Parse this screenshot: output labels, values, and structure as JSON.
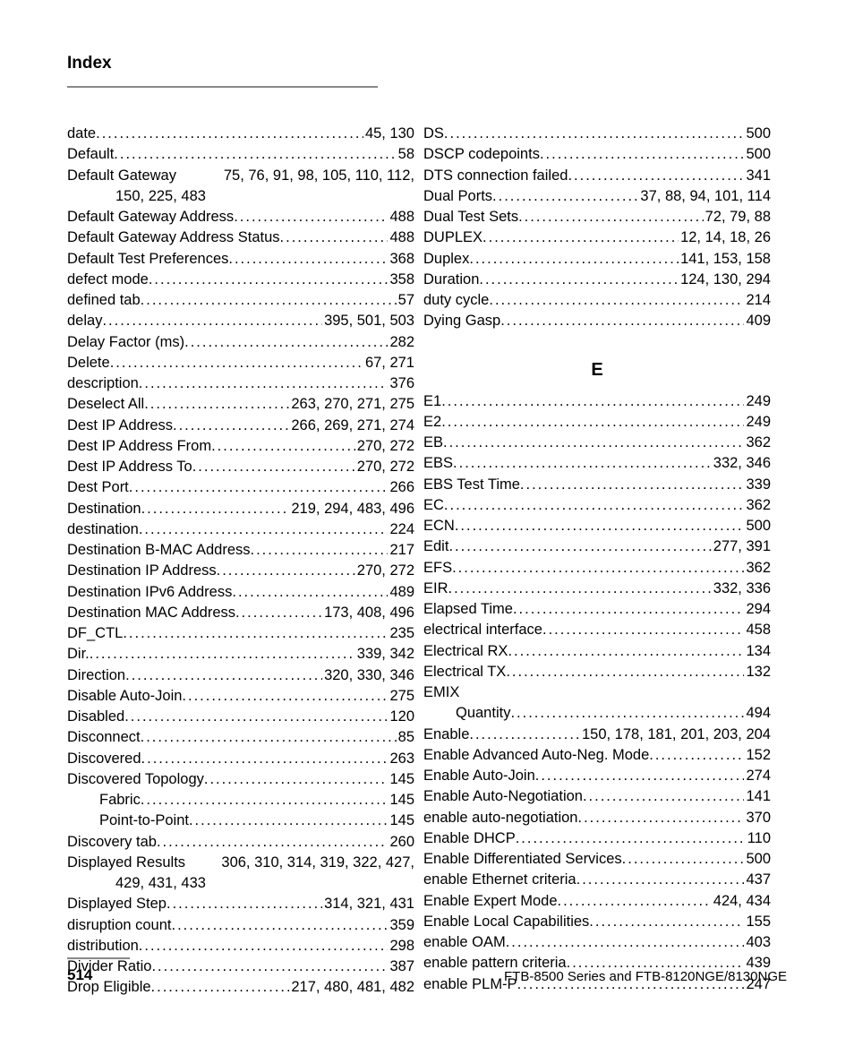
{
  "header": {
    "title": "Index"
  },
  "left_column": [
    {
      "term": "date",
      "pages": "45, 130"
    },
    {
      "term": "Default",
      "pages": "58"
    },
    {
      "term": "Default Gateway",
      "pages": "75, 76, 91, 98, 105, 110, 112,",
      "noleader": true
    },
    {
      "wrap": "150, 225, 483"
    },
    {
      "term": "Default Gateway Address",
      "pages": "488"
    },
    {
      "term": "Default Gateway Address Status",
      "pages": "488"
    },
    {
      "term": "Default Test Preferences",
      "pages": "368"
    },
    {
      "term": "defect mode",
      "pages": "358"
    },
    {
      "term": "defined tab",
      "pages": "57"
    },
    {
      "term": "delay",
      "pages": "395, 501, 503"
    },
    {
      "term": "Delay Factor (ms)",
      "pages": "282"
    },
    {
      "term": "Delete",
      "pages": "67, 271"
    },
    {
      "term": "description",
      "pages": "376"
    },
    {
      "term": "Deselect All",
      "pages": "263, 270, 271, 275"
    },
    {
      "term": "Dest IP Address",
      "pages": "266, 269, 271, 274"
    },
    {
      "term": "Dest IP Address From",
      "pages": "270, 272"
    },
    {
      "term": "Dest IP Address To",
      "pages": "270, 272"
    },
    {
      "term": "Dest Port",
      "pages": "266"
    },
    {
      "term": "Destination",
      "pages": "219, 294, 483, 496"
    },
    {
      "term": "destination",
      "pages": "224"
    },
    {
      "term": "Destination B-MAC Address",
      "pages": "217"
    },
    {
      "term": "Destination IP Address",
      "pages": "270, 272"
    },
    {
      "term": "Destination IPv6 Address",
      "pages": "489"
    },
    {
      "term": "Destination MAC Address",
      "pages": "173, 408, 496"
    },
    {
      "term": "DF_CTL",
      "pages": "235"
    },
    {
      "term": "Dir.",
      "pages": "339, 342"
    },
    {
      "term": "Direction",
      "pages": "320, 330, 346"
    },
    {
      "term": "Disable Auto-Join",
      "pages": "275"
    },
    {
      "term": "Disabled",
      "pages": "120"
    },
    {
      "term": "Disconnect",
      "pages": "85"
    },
    {
      "term": "Discovered",
      "pages": "263"
    },
    {
      "term": "Discovered Topology",
      "pages": "145"
    },
    {
      "term": "Fabric",
      "pages": "145",
      "indent": 1
    },
    {
      "term": "Point-to-Point",
      "pages": "145",
      "indent": 1
    },
    {
      "term": "Discovery tab",
      "pages": "260"
    },
    {
      "term": "Displayed Results",
      "pages": "306, 310, 314, 319, 322, 427,",
      "noleader": true
    },
    {
      "wrap": "429, 431, 433"
    },
    {
      "term": "Displayed Step",
      "pages": "314, 321, 431"
    },
    {
      "term": "disruption count",
      "pages": "359"
    },
    {
      "term": "distribution",
      "pages": "298"
    },
    {
      "term": "Divider Ratio",
      "pages": "387"
    },
    {
      "term": "Drop Eligible",
      "pages": "217, 480, 481, 482"
    }
  ],
  "right_column_top": [
    {
      "term": "DS",
      "pages": "500"
    },
    {
      "term": "DSCP codepoints",
      "pages": "500"
    },
    {
      "term": "DTS connection failed",
      "pages": "341"
    },
    {
      "term": "Dual Ports",
      "pages": "37, 88, 94, 101, 114"
    },
    {
      "term": "Dual Test Sets",
      "pages": "72, 79, 88"
    },
    {
      "term": "DUPLEX",
      "pages": "12, 14, 18, 26"
    },
    {
      "term": "Duplex",
      "pages": "141, 153, 158"
    },
    {
      "term": "Duration",
      "pages": "124, 130, 294"
    },
    {
      "term": "duty cycle",
      "pages": "214"
    },
    {
      "term": "Dying Gasp",
      "pages": "409"
    }
  ],
  "letter_e": "E",
  "right_column_e": [
    {
      "term": "E1",
      "pages": "249"
    },
    {
      "term": "E2",
      "pages": "249"
    },
    {
      "term": "EB",
      "pages": "362"
    },
    {
      "term": "EBS",
      "pages": "332, 346"
    },
    {
      "term": "EBS Test Time",
      "pages": "339"
    },
    {
      "term": "EC",
      "pages": "362"
    },
    {
      "term": "ECN",
      "pages": "500"
    },
    {
      "term": "Edit",
      "pages": "277, 391"
    },
    {
      "term": "EFS",
      "pages": "362"
    },
    {
      "term": "EIR",
      "pages": "332, 336"
    },
    {
      "term": "Elapsed Time",
      "pages": "294"
    },
    {
      "term": "electrical interface",
      "pages": "458"
    },
    {
      "term": "Electrical RX",
      "pages": "134"
    },
    {
      "term": "Electrical TX",
      "pages": "132"
    },
    {
      "term": "EMIX",
      "bare": true
    },
    {
      "term": "Quantity",
      "pages": "494",
      "indent": 1
    },
    {
      "term": "Enable",
      "pages": "150, 178, 181, 201, 203, 204"
    },
    {
      "term": "Enable Advanced Auto-Neg. Mode",
      "pages": "152"
    },
    {
      "term": "Enable Auto-Join",
      "pages": "274"
    },
    {
      "term": "Enable Auto-Negotiation",
      "pages": "141"
    },
    {
      "term": "enable auto-negotiation",
      "pages": "370"
    },
    {
      "term": "Enable DHCP",
      "pages": "110"
    },
    {
      "term": "Enable Differentiated Services",
      "pages": "500"
    },
    {
      "term": "enable Ethernet criteria",
      "pages": "437"
    },
    {
      "term": "Enable Expert Mode",
      "pages": "424, 434"
    },
    {
      "term": "Enable Local Capabilities",
      "pages": "155"
    },
    {
      "term": "enable OAM",
      "pages": "403"
    },
    {
      "term": "enable pattern criteria",
      "pages": "439"
    },
    {
      "term": "enable PLM-P",
      "pages": "247"
    }
  ],
  "footer": {
    "page_number": "514",
    "doc_id": "FTB-8500 Series and FTB-8120NGE/8130NGE"
  }
}
